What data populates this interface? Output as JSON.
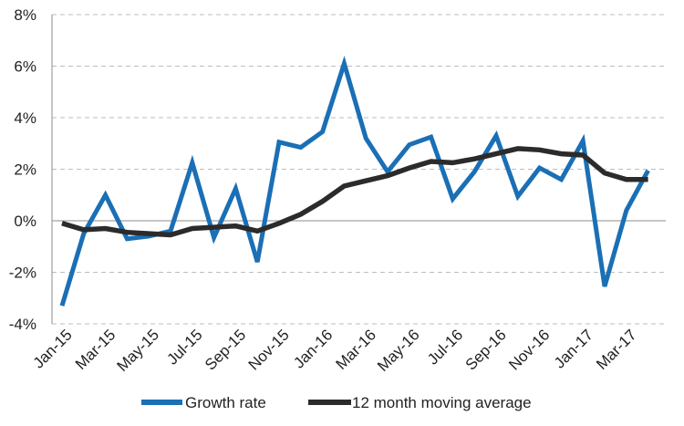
{
  "chart_data": {
    "type": "line",
    "title": "",
    "xlabel": "",
    "ylabel": "",
    "ylim": [
      -4,
      8
    ],
    "y_ticks": [
      -4,
      -2,
      0,
      2,
      4,
      6,
      8
    ],
    "y_tick_labels": [
      "-4%",
      "-2%",
      "0%",
      "2%",
      "4%",
      "6%",
      "8%"
    ],
    "categories": [
      "Jan-15",
      "Feb-15",
      "Mar-15",
      "Apr-15",
      "May-15",
      "Jun-15",
      "Jul-15",
      "Aug-15",
      "Sep-15",
      "Oct-15",
      "Nov-15",
      "Dec-15",
      "Jan-16",
      "Feb-16",
      "Mar-16",
      "Apr-16",
      "May-16",
      "Jun-16",
      "Jul-16",
      "Aug-16",
      "Sep-16",
      "Oct-16",
      "Nov-16",
      "Dec-16",
      "Jan-17",
      "Feb-17",
      "Mar-17",
      "Apr-17"
    ],
    "x_tick_labels": [
      "Jan-15",
      "Mar-15",
      "May-15",
      "Jul-15",
      "Sep-15",
      "Nov-15",
      "Jan-16",
      "Mar-16",
      "May-16",
      "Jul-16",
      "Sep-16",
      "Nov-16",
      "Jan-17",
      "Mar-17"
    ],
    "grid": "horizontal dashed",
    "legend_position": "bottom",
    "series": [
      {
        "name": "Growth rate",
        "color": "#1a6fb5",
        "values": [
          -3.3,
          -0.5,
          1.0,
          -0.7,
          -0.6,
          -0.4,
          2.25,
          -0.65,
          1.25,
          -1.6,
          3.05,
          2.85,
          3.45,
          6.1,
          3.2,
          1.9,
          2.95,
          3.25,
          0.85,
          1.9,
          3.3,
          0.95,
          2.05,
          1.6,
          3.1,
          -2.55,
          0.4,
          1.95
        ]
      },
      {
        "name": "12 month moving average",
        "color": "#2b2b2b",
        "values": [
          -0.1,
          -0.35,
          -0.3,
          -0.45,
          -0.5,
          -0.55,
          -0.3,
          -0.25,
          -0.2,
          -0.4,
          -0.1,
          0.25,
          0.75,
          1.35,
          1.55,
          1.75,
          2.05,
          2.3,
          2.25,
          2.4,
          2.6,
          2.8,
          2.75,
          2.6,
          2.55,
          1.85,
          1.6,
          1.6
        ]
      }
    ]
  }
}
